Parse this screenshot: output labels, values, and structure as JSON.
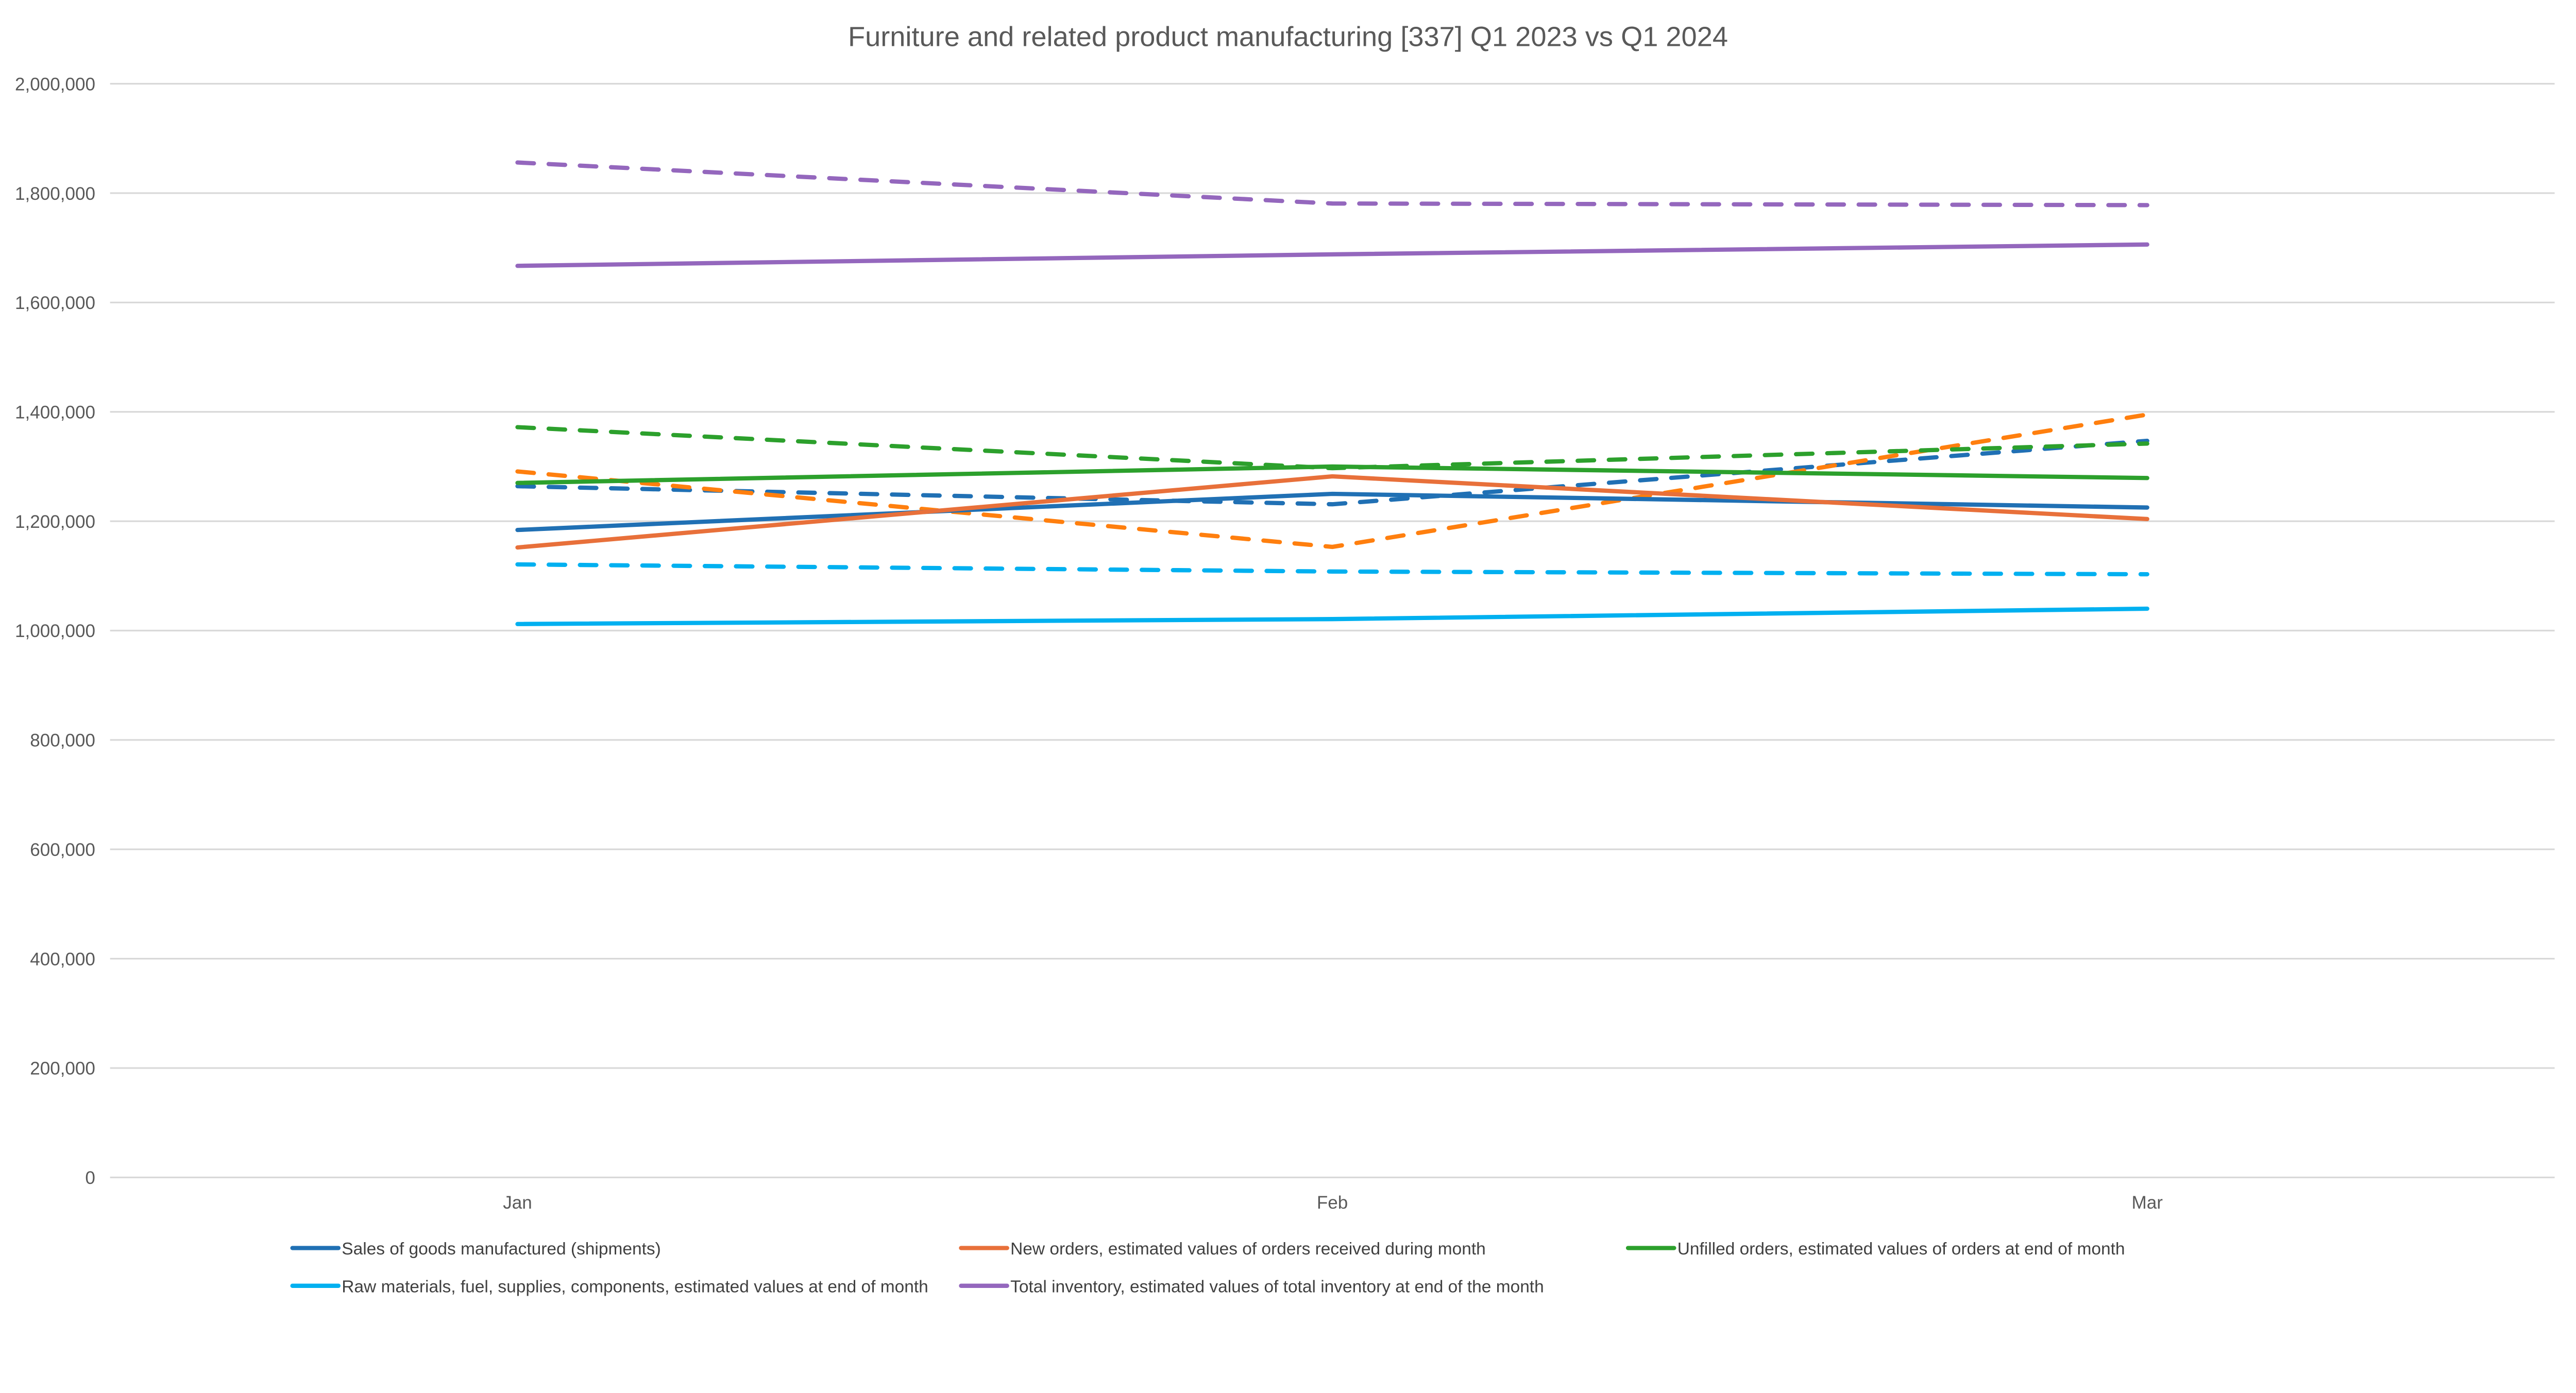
{
  "chart_data": {
    "type": "line",
    "title": "Furniture and related product manufacturing  [337] Q1 2023 vs Q1 2024",
    "xlabel": "",
    "ylabel": "",
    "categories": [
      "Jan",
      "Feb",
      "Mar"
    ],
    "ylim": [
      0,
      2000000
    ],
    "yticks": [
      "0",
      "200,000",
      "400,000",
      "600,000",
      "800,000",
      "1,000,000",
      "1,200,000",
      "1,400,000",
      "1,600,000",
      "1,800,000",
      "2,000,000"
    ],
    "grid": true,
    "legend_position": "bottom",
    "series": [
      {
        "name": "Sales of goods manufactured (shipments)",
        "style": "solid",
        "color": "#2070B4",
        "values": [
          1184000,
          1250000,
          1225000
        ]
      },
      {
        "name": "New orders, estimated values of orders received during month",
        "style": "solid",
        "color": "#E8703A",
        "values": [
          1152000,
          1282000,
          1204000
        ]
      },
      {
        "name": "Unfilled orders, estimated values of orders at end of month",
        "style": "solid",
        "color": "#2CA02C",
        "values": [
          1270000,
          1300000,
          1279000
        ]
      },
      {
        "name": "Raw materials, fuel, supplies, components, estimated values at end of month",
        "style": "solid",
        "color": "#00B0F0",
        "values": [
          1012000,
          1021000,
          1040000
        ]
      },
      {
        "name": "Total inventory, estimated values of total inventory at end of the month",
        "style": "solid",
        "color": "#9467BD",
        "values": [
          1667000,
          1688000,
          1706000
        ]
      },
      {
        "style": "dashed",
        "color": "#2070B4",
        "values": [
          1264000,
          1231000,
          1347000
        ]
      },
      {
        "style": "dashed",
        "color": "#FF7F0E",
        "values": [
          1291000,
          1153000,
          1395000
        ]
      },
      {
        "style": "dashed",
        "color": "#2CA02C",
        "values": [
          1372000,
          1297000,
          1342000
        ]
      },
      {
        "style": "dashed",
        "color": "#00B0F0",
        "values": [
          1121000,
          1108000,
          1103000
        ]
      },
      {
        "style": "dashed",
        "color": "#9467BD",
        "values": [
          1856000,
          1781000,
          1778000
        ]
      }
    ]
  }
}
